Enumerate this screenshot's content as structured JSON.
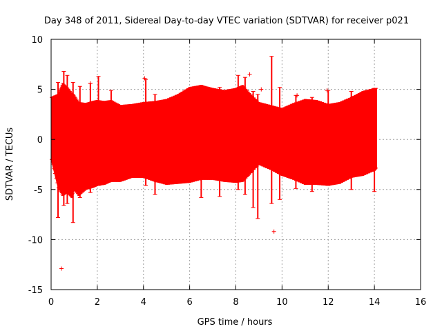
{
  "chart_data": {
    "type": "scatter",
    "title": "Day 348 of 2011, Sidereal Day-to-day VTEC variation (SDTVAR) for receiver p021",
    "xlabel": "GPS time / hours",
    "ylabel": "SDTVAR / TECUs",
    "xlim": [
      0,
      16
    ],
    "ylim": [
      -15,
      10
    ],
    "xticks": [
      0,
      2,
      4,
      6,
      8,
      10,
      12,
      14,
      16
    ],
    "yticks": [
      -15,
      -10,
      -5,
      0,
      5,
      10
    ],
    "grid": true,
    "marker": "+",
    "series_color": "#ff0000",
    "band": {
      "x": [
        0.0,
        0.3,
        0.5,
        0.7,
        0.9,
        1.0,
        1.2,
        1.5,
        1.8,
        2.0,
        2.3,
        2.6,
        3.0,
        3.5,
        4.0,
        4.5,
        5.0,
        5.5,
        6.0,
        6.5,
        7.0,
        7.5,
        8.0,
        8.3,
        8.6,
        9.0,
        9.5,
        10.0,
        10.5,
        11.0,
        11.5,
        12.0,
        12.5,
        13.0,
        13.5,
        14.0,
        14.1
      ],
      "upper": [
        4.2,
        4.5,
        5.6,
        5.2,
        4.6,
        4.4,
        3.7,
        3.6,
        3.8,
        3.9,
        3.8,
        3.9,
        3.4,
        3.5,
        3.7,
        3.8,
        4.0,
        4.5,
        5.2,
        5.4,
        5.1,
        4.9,
        5.1,
        5.4,
        4.6,
        3.7,
        3.4,
        3.1,
        3.6,
        4.0,
        3.9,
        3.5,
        3.7,
        4.2,
        4.8,
        5.1,
        5.1
      ],
      "lower": [
        -2.0,
        -4.8,
        -5.6,
        -5.3,
        -5.8,
        -5.0,
        -5.6,
        -5.0,
        -4.8,
        -4.6,
        -4.5,
        -4.2,
        -4.2,
        -3.8,
        -3.8,
        -4.2,
        -4.5,
        -4.4,
        -4.3,
        -4.0,
        -4.0,
        -4.2,
        -4.3,
        -4.2,
        -3.5,
        -2.5,
        -3.0,
        -3.6,
        -4.0,
        -4.5,
        -4.5,
        -4.6,
        -4.4,
        -3.8,
        -3.6,
        -3.1,
        -2.8
      ]
    },
    "spikes": [
      {
        "x": 0.3,
        "top": 5.7,
        "bottom": -7.8
      },
      {
        "x": 0.55,
        "top": 6.8,
        "bottom": -6.6
      },
      {
        "x": 0.7,
        "top": 6.4,
        "bottom": -6.4
      },
      {
        "x": 0.95,
        "top": 5.7,
        "bottom": -8.3
      },
      {
        "x": 1.25,
        "top": 5.3,
        "bottom": -5.8
      },
      {
        "x": 1.7,
        "top": 5.6,
        "bottom": -5.3
      },
      {
        "x": 2.05,
        "top": 6.3,
        "bottom": -4.6
      },
      {
        "x": 2.6,
        "top": 4.9,
        "bottom": -4.2
      },
      {
        "x": 4.1,
        "top": 6.0,
        "bottom": -4.6
      },
      {
        "x": 4.5,
        "top": 4.5,
        "bottom": -5.5
      },
      {
        "x": 6.5,
        "top": 5.4,
        "bottom": -5.8
      },
      {
        "x": 7.3,
        "top": 5.2,
        "bottom": -5.7
      },
      {
        "x": 8.1,
        "top": 6.4,
        "bottom": -5.0
      },
      {
        "x": 8.4,
        "top": 6.2,
        "bottom": -5.5
      },
      {
        "x": 8.75,
        "top": 4.8,
        "bottom": -6.8
      },
      {
        "x": 8.95,
        "top": 4.5,
        "bottom": -7.9
      },
      {
        "x": 9.55,
        "top": 8.3,
        "bottom": -6.4
      },
      {
        "x": 9.9,
        "top": 5.2,
        "bottom": -6.0
      },
      {
        "x": 10.6,
        "top": 4.4,
        "bottom": -4.9
      },
      {
        "x": 11.3,
        "top": 4.2,
        "bottom": -5.2
      },
      {
        "x": 12.0,
        "top": 4.9,
        "bottom": -4.6
      },
      {
        "x": 13.0,
        "top": 4.8,
        "bottom": -5.0
      },
      {
        "x": 14.0,
        "top": 5.1,
        "bottom": -5.2
      }
    ],
    "outliers": [
      {
        "x": 0.45,
        "y": -12.9
      },
      {
        "x": 9.65,
        "y": -9.2
      },
      {
        "x": 10.65,
        "y": 4.4
      },
      {
        "x": 11.95,
        "y": 4.9
      },
      {
        "x": 9.1,
        "y": 5.0
      },
      {
        "x": 8.6,
        "y": 6.5
      },
      {
        "x": 1.7,
        "y": 5.6
      },
      {
        "x": 4.05,
        "y": 6.1
      }
    ]
  }
}
